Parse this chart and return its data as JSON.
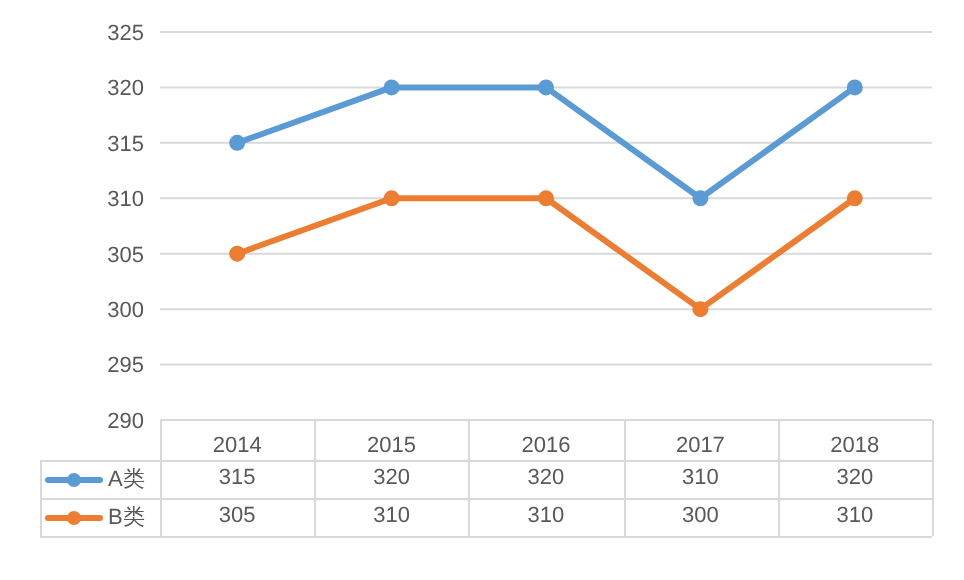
{
  "chart_data": {
    "type": "line",
    "categories": [
      "2014",
      "2015",
      "2016",
      "2017",
      "2018"
    ],
    "series": [
      {
        "name": "A类",
        "color": "#5b9bd5",
        "values": [
          315,
          320,
          320,
          310,
          320
        ]
      },
      {
        "name": "B类",
        "color": "#ed7d31",
        "values": [
          305,
          310,
          310,
          300,
          310
        ]
      }
    ],
    "ylim": [
      290,
      325
    ],
    "yticks": [
      290,
      295,
      300,
      305,
      310,
      315,
      320,
      325
    ],
    "grid": "y",
    "legend": "bottom",
    "data_labels": true,
    "marker": "circle"
  }
}
